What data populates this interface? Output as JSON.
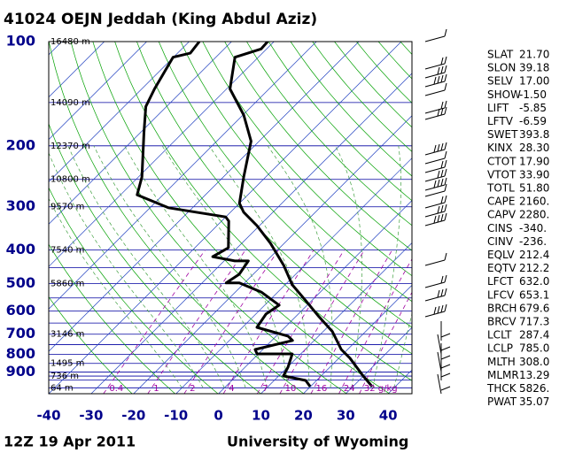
{
  "chart_data": {
    "type": "skewt",
    "title": "41024 OEJN Jeddah (King Abdul Aziz)",
    "footer_left": "12Z 19 Apr 2011",
    "footer_right": "University of Wyoming",
    "xlim": [
      -40,
      45.6
    ],
    "xticks": [
      -40,
      -30,
      -20,
      -10,
      0,
      10,
      20,
      30,
      40
    ],
    "ylim": [
      100,
      1040
    ],
    "log_y": true,
    "yticks": [
      100,
      200,
      300,
      400,
      500,
      600,
      700,
      800,
      900
    ],
    "ygrid": [
      100,
      150,
      200,
      250,
      300,
      400,
      450,
      500,
      550,
      600,
      650,
      700,
      750,
      800,
      850,
      900,
      925,
      950,
      1000
    ],
    "heights": [
      {
        "pressure": 100,
        "label": "16480 m"
      },
      {
        "pressure": 150,
        "label": "14090 m"
      },
      {
        "pressure": 200,
        "label": "12370 m"
      },
      {
        "pressure": 250,
        "label": "10800 m"
      },
      {
        "pressure": 300,
        "label": "9570 m"
      },
      {
        "pressure": 400,
        "label": "7540 m"
      },
      {
        "pressure": 500,
        "label": "5860 m"
      },
      {
        "pressure": 700,
        "label": "3146 m"
      },
      {
        "pressure": 850,
        "label": "1495 m"
      },
      {
        "pressure": 925,
        "label": "736 m"
      },
      {
        "pressure": 1000,
        "label": "64 m"
      }
    ],
    "mixing_ratios": [
      0.4,
      1,
      2,
      4,
      7,
      10,
      16,
      24,
      {
        "value": 32,
        "label": "32 g/kg"
      }
    ],
    "temperature": {
      "color": "#000000",
      "pressure": [
        991,
        924,
        821,
        775,
        688,
        623,
        560,
        504,
        443,
        382,
        340,
        311,
        293,
        246,
        194,
        163,
        137,
        111,
        105,
        100
      ],
      "values": [
        34.5,
        29.9,
        22.6,
        18.5,
        12.2,
        5.5,
        -1.4,
        -8.3,
        -14.9,
        -23.3,
        -30.6,
        -36.9,
        -40,
        -45.2,
        -51.9,
        -59.8,
        -69.2,
        -75.5,
        -71.3,
        -71.5
      ]
    },
    "dewpoint": {
      "color": "#000000",
      "pressure": [
        991,
        952,
        924,
        871,
        798,
        798,
        775,
        730,
        709,
        669,
        612,
        577,
        529,
        498,
        498,
        470,
        430,
        430,
        418,
        394,
        330,
        321,
        302,
        277,
        246,
        183,
        154,
        137,
        111,
        108,
        100
      ],
      "values": [
        19.9,
        17.4,
        11.1,
        10.1,
        8.0,
        -0.3,
        -1.8,
        4.9,
        2.8,
        -6.6,
        -7.6,
        -6.6,
        -13.9,
        -21.2,
        -24.3,
        -23.3,
        -24.3,
        -27.5,
        -33.7,
        -32.1,
        -38.3,
        -40,
        -55.7,
        -66.1,
        -69.2,
        -79.2,
        -84.9,
        -87,
        -90.1,
        -87,
        -87.6
      ]
    },
    "indices": [
      {
        "name": "SLAT",
        "value": "21.70"
      },
      {
        "name": "SLON",
        "value": "39.18"
      },
      {
        "name": "SELV",
        "value": "17.00"
      },
      {
        "name": "SHOW",
        "value": "-1.50"
      },
      {
        "name": "LIFT",
        "value": "-5.85"
      },
      {
        "name": "LFTV",
        "value": "-6.59"
      },
      {
        "name": "SWET",
        "value": "393.8"
      },
      {
        "name": "KINX",
        "value": "28.30"
      },
      {
        "name": "CTOT",
        "value": "17.90"
      },
      {
        "name": "VTOT",
        "value": "33.90"
      },
      {
        "name": "TOTL",
        "value": "51.80"
      },
      {
        "name": "CAPE",
        "value": "2160."
      },
      {
        "name": "CAPV",
        "value": "2280."
      },
      {
        "name": "CINS",
        "value": "-340."
      },
      {
        "name": "CINV",
        "value": "-236."
      },
      {
        "name": "EQLV",
        "value": "212.4"
      },
      {
        "name": "EQTV",
        "value": "212.2"
      },
      {
        "name": "LFCT",
        "value": "632.0"
      },
      {
        "name": "LFCV",
        "value": "653.1"
      },
      {
        "name": "BRCH",
        "value": "679.6"
      },
      {
        "name": "BRCV",
        "value": "717.3"
      },
      {
        "name": "LCLT",
        "value": "287.4"
      },
      {
        "name": "LCLP",
        "value": "785.0"
      },
      {
        "name": "MLTH",
        "value": "308.0"
      },
      {
        "name": "MLMR",
        "value": "13.29"
      },
      {
        "name": "THCK",
        "value": "5826."
      },
      {
        "name": "PWAT",
        "value": "35.07"
      }
    ]
  }
}
